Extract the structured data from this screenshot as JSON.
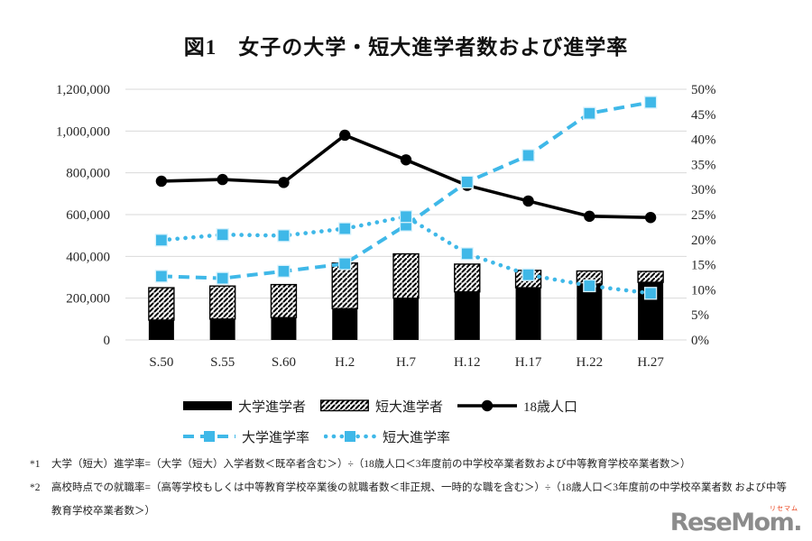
{
  "title": "図1　女子の大学・短大進学者数および進学率",
  "chart_data": {
    "type": "bar",
    "subtype": "stacked-bar-with-lines",
    "categories": [
      "S.50",
      "S.55",
      "S.60",
      "H.2",
      "H.7",
      "H.12",
      "H.17",
      "H.22",
      "H.27"
    ],
    "left_axis": {
      "min": 0,
      "max": 1200000,
      "tick_step": 200000,
      "tick_labels": [
        "0",
        "200,000",
        "400,000",
        "600,000",
        "800,000",
        "1,000,000",
        "1,200,000"
      ]
    },
    "right_axis": {
      "min": 0,
      "max": 50,
      "tick_step": 5,
      "tick_labels": [
        "0%",
        "5%",
        "10%",
        "15%",
        "20%",
        "25%",
        "30%",
        "35%",
        "40%",
        "45%",
        "50%"
      ]
    },
    "bar_series": [
      {
        "name": "大学進学者",
        "style": "solid",
        "color": "#000000",
        "values": [
          95000,
          100000,
          107000,
          150000,
          200000,
          230000,
          250000,
          268000,
          276000
        ]
      },
      {
        "name": "短大進学者",
        "style": "hatched",
        "color": "#000000",
        "values": [
          155000,
          158000,
          158000,
          218000,
          212000,
          133000,
          83000,
          62000,
          52000
        ]
      }
    ],
    "line_series": [
      {
        "name": "18歳人口",
        "axis": "left",
        "style": "solid",
        "color": "#000000",
        "marker": "circle",
        "values": [
          760000,
          768000,
          754000,
          980000,
          862000,
          740000,
          665000,
          592000,
          586000
        ]
      },
      {
        "name": "大学進学率",
        "axis": "right",
        "style": "dashed",
        "color": "#3FB8E8",
        "marker": "square",
        "values": [
          12.7,
          12.3,
          13.7,
          15.2,
          22.9,
          31.5,
          36.8,
          45.2,
          47.4
        ]
      },
      {
        "name": "短大進学率",
        "axis": "right",
        "style": "dotted",
        "color": "#3FB8E8",
        "marker": "square",
        "values": [
          19.9,
          21.0,
          20.8,
          22.2,
          24.6,
          17.2,
          13.0,
          10.8,
          9.3
        ]
      }
    ],
    "grid": true,
    "gridline_color": "#D9D9D9",
    "legend_position": "bottom"
  },
  "footnotes": [
    {
      "marker": "*1",
      "text": "大学（短大）進学率=（大学（短大）入学者数＜既卒者含む＞）÷（18歳人口＜3年度前の中学校卒業者数および中等教育学校卒業者数＞）"
    },
    {
      "marker": "*2",
      "text": "高校時点での就職率=（高等学校もしくは中等教育学校卒業後の就職者数＜非正規、一時的な職を含む＞）÷（18歳人口＜3年度前の中学校卒業者数 および中等教育学校卒業者数＞）"
    }
  ],
  "logo": {
    "text": "ReseMom.",
    "ruby": "リセマム",
    "color": "#8C8C8C",
    "ruby_color": "#E83810"
  }
}
